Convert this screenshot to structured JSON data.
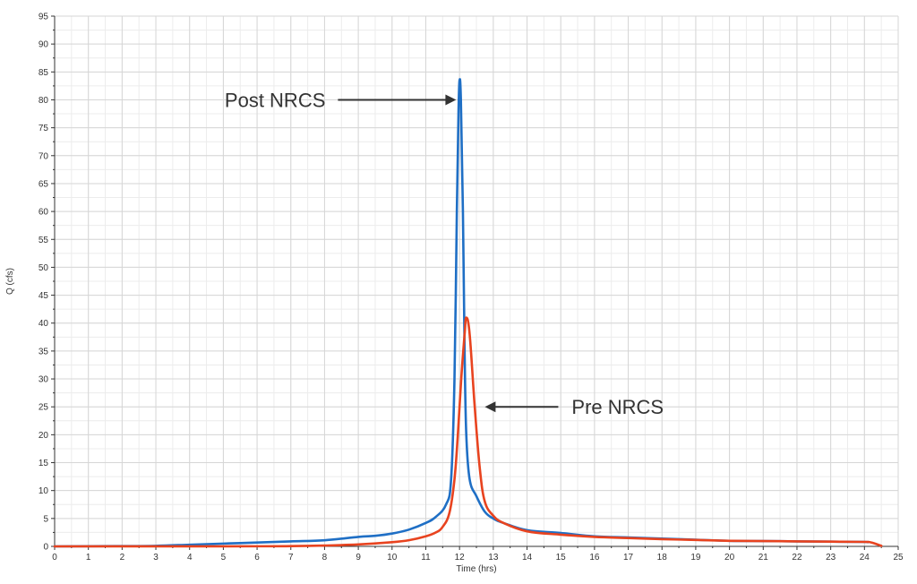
{
  "chart_data": {
    "type": "line",
    "xlabel": "Time (hrs)",
    "ylabel": "Q (cfs)",
    "xlim": [
      0,
      25
    ],
    "ylim": [
      0,
      95
    ],
    "x_major_step": 1,
    "y_major_step": 5,
    "x_minor_step": 0.5,
    "y_minor_step": 2.5,
    "grid": true,
    "series": [
      {
        "color": "#1f6fc5",
        "points": [
          [
            0,
            0
          ],
          [
            2,
            0.05
          ],
          [
            3,
            0.1
          ],
          [
            4,
            0.3
          ],
          [
            5,
            0.5
          ],
          [
            6,
            0.7
          ],
          [
            7,
            0.9
          ],
          [
            8,
            1.1
          ],
          [
            9,
            1.7
          ],
          [
            9.5,
            1.9
          ],
          [
            10,
            2.3
          ],
          [
            10.5,
            3.0
          ],
          [
            11,
            4.2
          ],
          [
            11.3,
            5.3
          ],
          [
            11.6,
            7.5
          ],
          [
            11.75,
            12
          ],
          [
            11.85,
            30
          ],
          [
            11.92,
            60
          ],
          [
            11.97,
            78
          ],
          [
            12.0,
            83.5
          ],
          [
            12.04,
            80
          ],
          [
            12.1,
            60
          ],
          [
            12.15,
            35
          ],
          [
            12.2,
            20
          ],
          [
            12.3,
            12
          ],
          [
            12.5,
            9
          ],
          [
            12.75,
            6.2
          ],
          [
            13,
            5.0
          ],
          [
            13.3,
            4.2
          ],
          [
            14,
            2.9
          ],
          [
            15,
            2.4
          ],
          [
            16,
            1.8
          ],
          [
            17,
            1.6
          ],
          [
            18,
            1.4
          ],
          [
            19,
            1.2
          ],
          [
            20,
            1.0
          ],
          [
            21,
            0.95
          ],
          [
            22,
            0.9
          ],
          [
            23,
            0.85
          ],
          [
            24,
            0.8
          ],
          [
            24.1,
            0.75
          ]
        ]
      },
      {
        "color": "#e8431f",
        "points": [
          [
            0,
            0
          ],
          [
            6,
            0.02
          ],
          [
            7,
            0.05
          ],
          [
            8,
            0.15
          ],
          [
            9,
            0.35
          ],
          [
            10,
            0.75
          ],
          [
            10.5,
            1.1
          ],
          [
            11,
            1.8
          ],
          [
            11.3,
            2.5
          ],
          [
            11.5,
            3.5
          ],
          [
            11.7,
            6
          ],
          [
            11.85,
            12
          ],
          [
            11.95,
            20
          ],
          [
            12.05,
            30
          ],
          [
            12.15,
            38
          ],
          [
            12.2,
            41
          ],
          [
            12.3,
            38
          ],
          [
            12.45,
            25
          ],
          [
            12.6,
            14
          ],
          [
            12.75,
            8
          ],
          [
            13,
            5.5
          ],
          [
            13.3,
            4.2
          ],
          [
            14,
            2.7
          ],
          [
            15,
            2.1
          ],
          [
            16,
            1.7
          ],
          [
            17,
            1.5
          ],
          [
            18,
            1.3
          ],
          [
            19,
            1.15
          ],
          [
            20,
            1.0
          ],
          [
            21,
            0.95
          ],
          [
            22,
            0.9
          ],
          [
            23,
            0.85
          ],
          [
            24,
            0.8
          ],
          [
            24.2,
            0.7
          ],
          [
            24.5,
            0.1
          ]
        ]
      }
    ],
    "annotations": [
      {
        "text": "Post NRCS",
        "series_index": 0,
        "arrow_to": [
          11.9,
          80
        ],
        "direction": "right"
      },
      {
        "text": "Pre NRCS",
        "series_index": 1,
        "arrow_to": [
          12.75,
          25
        ],
        "direction": "left"
      }
    ]
  }
}
